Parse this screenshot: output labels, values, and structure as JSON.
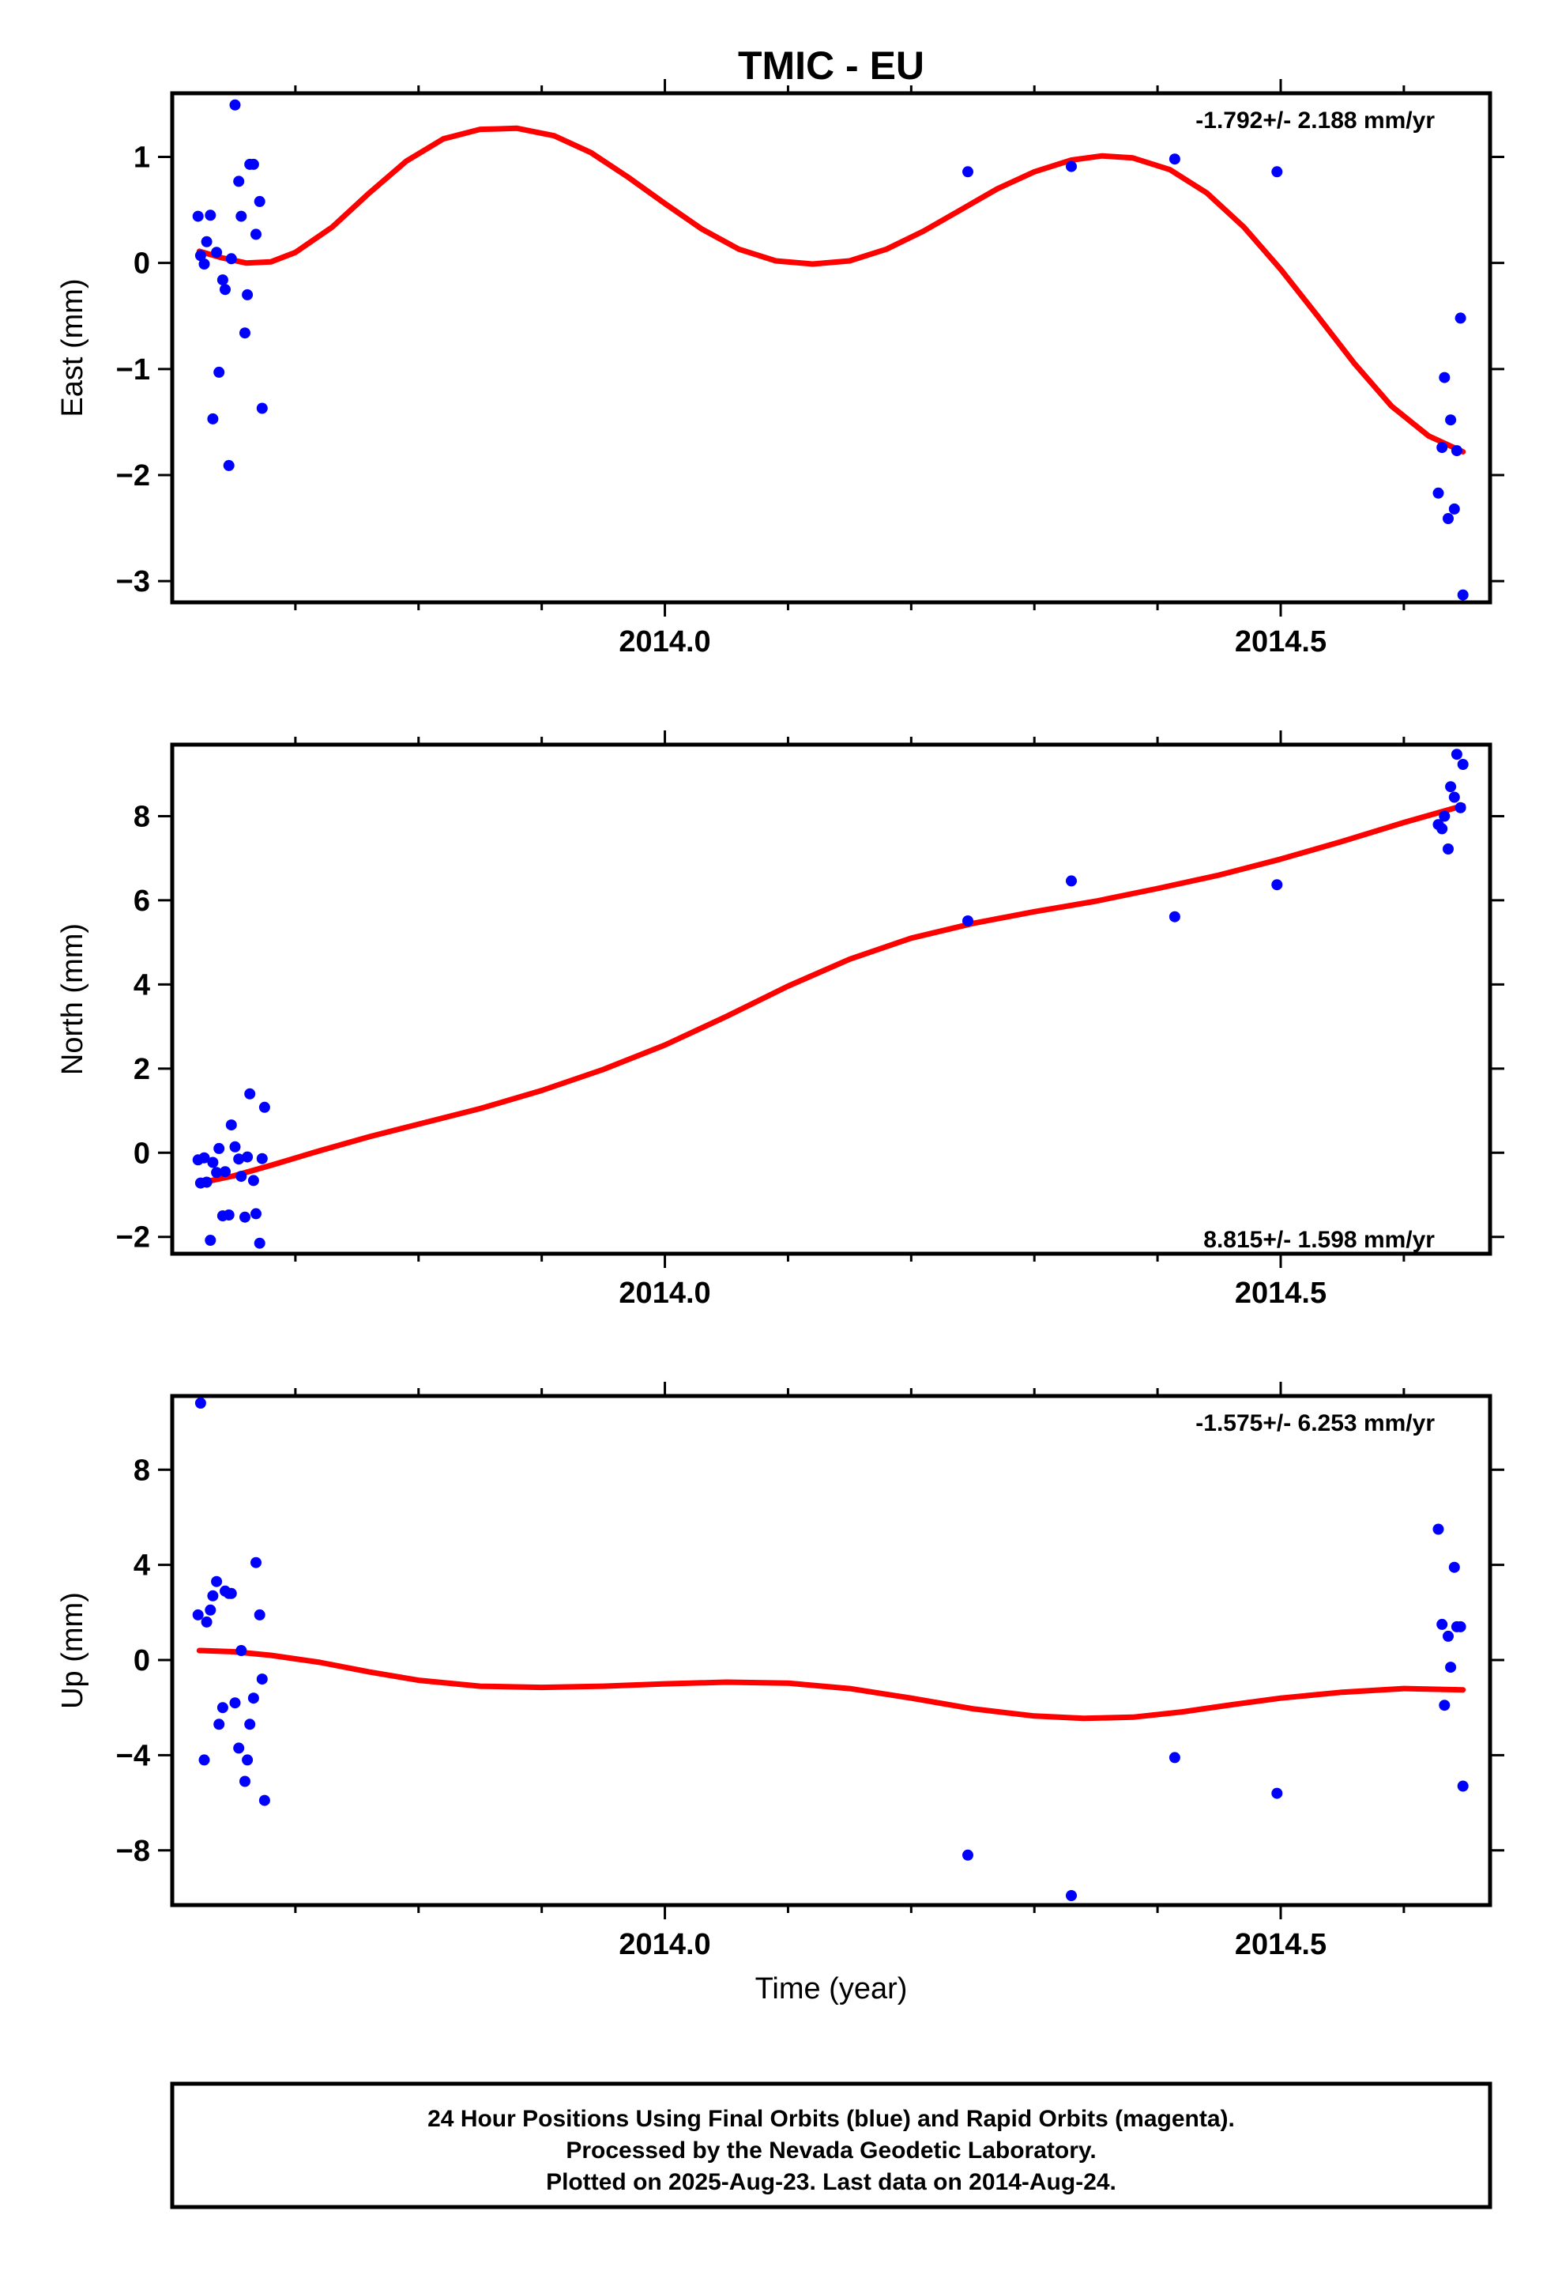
{
  "title": "TMIC - EU",
  "x_axis_label": "Time (year)",
  "colors": {
    "points": "#0000ff",
    "fit": "#ff0000",
    "frame": "#000000"
  },
  "footer": {
    "line1": "24 Hour Positions Using Final Orbits (blue) and Rapid Orbits (magenta).",
    "line2": "Processed by the Nevada Geodetic Laboratory.",
    "line3": "Plotted on 2025-Aug-23. Last data on 2014-Aug-24."
  },
  "chart_data": [
    {
      "type": "scatter",
      "ylabel": "East (mm)",
      "rate_text": "-1.792+/- 2.188 mm/yr",
      "xlim": [
        2013.6,
        2014.67
      ],
      "ylim": [
        -3.2,
        1.6
      ],
      "x_ticks": [
        2014.0,
        2014.5
      ],
      "x_tick_labels": [
        "2014.0",
        "2014.5"
      ],
      "y_ticks": [
        -3,
        -2,
        -1,
        0,
        1
      ],
      "y_tick_labels": [
        "−3",
        "−2",
        "−1",
        "0",
        "1"
      ],
      "grid": false,
      "points": [
        [
          2013.621,
          0.44
        ],
        [
          2013.623,
          0.07
        ],
        [
          2013.626,
          -0.01
        ],
        [
          2013.628,
          0.2
        ],
        [
          2013.631,
          0.45
        ],
        [
          2013.633,
          -1.47
        ],
        [
          2013.636,
          0.1
        ],
        [
          2013.638,
          -1.03
        ],
        [
          2013.641,
          -0.16
        ],
        [
          2013.643,
          -0.25
        ],
        [
          2013.646,
          -1.91
        ],
        [
          2013.648,
          0.04
        ],
        [
          2013.651,
          1.49
        ],
        [
          2013.654,
          0.77
        ],
        [
          2013.656,
          0.44
        ],
        [
          2013.659,
          -0.66
        ],
        [
          2013.661,
          -0.3
        ],
        [
          2013.663,
          0.93
        ],
        [
          2013.666,
          0.93
        ],
        [
          2013.668,
          0.27
        ],
        [
          2013.671,
          0.58
        ],
        [
          2013.673,
          -1.37
        ],
        [
          2014.246,
          0.86
        ],
        [
          2014.33,
          0.91
        ],
        [
          2014.414,
          0.98
        ],
        [
          2014.497,
          0.86
        ],
        [
          2014.628,
          -2.17
        ],
        [
          2014.631,
          -1.74
        ],
        [
          2014.633,
          -1.08
        ],
        [
          2014.636,
          -2.41
        ],
        [
          2014.638,
          -1.48
        ],
        [
          2014.641,
          -2.32
        ],
        [
          2014.643,
          -1.77
        ],
        [
          2014.646,
          -0.52
        ],
        [
          2014.648,
          -3.13
        ]
      ],
      "fit": [
        [
          2013.622,
          0.11
        ],
        [
          2013.64,
          0.05
        ],
        [
          2013.66,
          0.0
        ],
        [
          2013.68,
          0.01
        ],
        [
          2013.7,
          0.1
        ],
        [
          2013.73,
          0.34
        ],
        [
          2013.76,
          0.66
        ],
        [
          2013.79,
          0.96
        ],
        [
          2013.82,
          1.17
        ],
        [
          2013.85,
          1.26
        ],
        [
          2013.88,
          1.27
        ],
        [
          2013.91,
          1.2
        ],
        [
          2013.94,
          1.04
        ],
        [
          2013.97,
          0.81
        ],
        [
          2014.0,
          0.56
        ],
        [
          2014.03,
          0.32
        ],
        [
          2014.06,
          0.13
        ],
        [
          2014.09,
          0.02
        ],
        [
          2014.12,
          -0.01
        ],
        [
          2014.15,
          0.02
        ],
        [
          2014.18,
          0.13
        ],
        [
          2014.21,
          0.3
        ],
        [
          2014.24,
          0.5
        ],
        [
          2014.27,
          0.7
        ],
        [
          2014.3,
          0.86
        ],
        [
          2014.33,
          0.97
        ],
        [
          2014.355,
          1.01
        ],
        [
          2014.38,
          0.99
        ],
        [
          2014.41,
          0.88
        ],
        [
          2014.44,
          0.66
        ],
        [
          2014.47,
          0.34
        ],
        [
          2014.5,
          -0.06
        ],
        [
          2014.53,
          -0.5
        ],
        [
          2014.56,
          -0.95
        ],
        [
          2014.59,
          -1.35
        ],
        [
          2014.62,
          -1.63
        ],
        [
          2014.648,
          -1.78
        ]
      ]
    },
    {
      "type": "scatter",
      "ylabel": "North (mm)",
      "rate_text": "8.815+/- 1.598 mm/yr",
      "xlim": [
        2013.6,
        2014.67
      ],
      "ylim": [
        -2.4,
        9.7
      ],
      "x_ticks": [
        2014.0,
        2014.5
      ],
      "x_tick_labels": [
        "2014.0",
        "2014.5"
      ],
      "y_ticks": [
        -2,
        0,
        2,
        4,
        6,
        8
      ],
      "y_tick_labels": [
        "−2",
        "0",
        "2",
        "4",
        "6",
        "8"
      ],
      "grid": false,
      "points": [
        [
          2013.621,
          -0.17
        ],
        [
          2013.623,
          -0.72
        ],
        [
          2013.626,
          -0.12
        ],
        [
          2013.628,
          -0.7
        ],
        [
          2013.631,
          -2.08
        ],
        [
          2013.633,
          -0.23
        ],
        [
          2013.636,
          -0.47
        ],
        [
          2013.638,
          0.1
        ],
        [
          2013.641,
          -1.5
        ],
        [
          2013.643,
          -0.45
        ],
        [
          2013.646,
          -1.48
        ],
        [
          2013.648,
          0.66
        ],
        [
          2013.651,
          0.14
        ],
        [
          2013.654,
          -0.15
        ],
        [
          2013.656,
          -0.56
        ],
        [
          2013.659,
          -1.53
        ],
        [
          2013.661,
          -0.1
        ],
        [
          2013.663,
          1.4
        ],
        [
          2013.666,
          -0.66
        ],
        [
          2013.668,
          -1.45
        ],
        [
          2013.671,
          -2.15
        ],
        [
          2013.673,
          -0.14
        ],
        [
          2013.675,
          1.08
        ],
        [
          2014.246,
          5.51
        ],
        [
          2014.33,
          6.46
        ],
        [
          2014.414,
          5.61
        ],
        [
          2014.497,
          6.37
        ],
        [
          2014.628,
          7.8
        ],
        [
          2014.631,
          7.7
        ],
        [
          2014.633,
          8.0
        ],
        [
          2014.636,
          7.22
        ],
        [
          2014.638,
          8.7
        ],
        [
          2014.641,
          8.45
        ],
        [
          2014.643,
          9.47
        ],
        [
          2014.646,
          8.2
        ],
        [
          2014.648,
          9.23
        ]
      ],
      "fit": [
        [
          2013.622,
          -0.72
        ],
        [
          2013.65,
          -0.55
        ],
        [
          2013.68,
          -0.3
        ],
        [
          2013.72,
          0.05
        ],
        [
          2013.76,
          0.38
        ],
        [
          2013.8,
          0.68
        ],
        [
          2013.85,
          1.05
        ],
        [
          2013.9,
          1.48
        ],
        [
          2013.95,
          1.98
        ],
        [
          2014.0,
          2.56
        ],
        [
          2014.05,
          3.24
        ],
        [
          2014.1,
          3.96
        ],
        [
          2014.15,
          4.6
        ],
        [
          2014.2,
          5.1
        ],
        [
          2014.25,
          5.45
        ],
        [
          2014.3,
          5.73
        ],
        [
          2014.35,
          5.98
        ],
        [
          2014.4,
          6.28
        ],
        [
          2014.45,
          6.6
        ],
        [
          2014.5,
          6.98
        ],
        [
          2014.55,
          7.4
        ],
        [
          2014.6,
          7.85
        ],
        [
          2014.648,
          8.25
        ]
      ]
    },
    {
      "type": "scatter",
      "ylabel": "Up (mm)",
      "rate_text": "-1.575+/- 6.253 mm/yr",
      "xlim": [
        2013.6,
        2014.67
      ],
      "ylim": [
        -10.3,
        11.1
      ],
      "x_ticks": [
        2014.0,
        2014.5
      ],
      "x_tick_labels": [
        "2014.0",
        "2014.5"
      ],
      "y_ticks": [
        -8,
        -4,
        0,
        4,
        8
      ],
      "y_tick_labels": [
        "−8",
        "−4",
        "0",
        "4",
        "8"
      ],
      "grid": false,
      "points": [
        [
          2013.621,
          1.9
        ],
        [
          2013.623,
          10.8
        ],
        [
          2013.626,
          -4.2
        ],
        [
          2013.628,
          1.6
        ],
        [
          2013.631,
          2.1
        ],
        [
          2013.633,
          2.7
        ],
        [
          2013.636,
          3.3
        ],
        [
          2013.638,
          -2.7
        ],
        [
          2013.641,
          -2.0
        ],
        [
          2013.643,
          2.9
        ],
        [
          2013.646,
          2.8
        ],
        [
          2013.648,
          2.8
        ],
        [
          2013.651,
          -1.8
        ],
        [
          2013.654,
          -3.7
        ],
        [
          2013.656,
          0.4
        ],
        [
          2013.659,
          -5.1
        ],
        [
          2013.661,
          -4.2
        ],
        [
          2013.663,
          -2.7
        ],
        [
          2013.666,
          -1.6
        ],
        [
          2013.668,
          4.1
        ],
        [
          2013.671,
          1.9
        ],
        [
          2013.673,
          -0.8
        ],
        [
          2013.675,
          -5.9
        ],
        [
          2014.246,
          -8.2
        ],
        [
          2014.33,
          -9.9
        ],
        [
          2014.414,
          -4.1
        ],
        [
          2014.497,
          -5.6
        ],
        [
          2014.628,
          5.5
        ],
        [
          2014.631,
          1.5
        ],
        [
          2014.633,
          -1.9
        ],
        [
          2014.636,
          1.0
        ],
        [
          2014.638,
          -0.3
        ],
        [
          2014.641,
          3.9
        ],
        [
          2014.643,
          1.4
        ],
        [
          2014.646,
          1.4
        ],
        [
          2014.648,
          -5.3
        ]
      ],
      "fit": [
        [
          2013.622,
          0.4
        ],
        [
          2013.65,
          0.35
        ],
        [
          2013.68,
          0.2
        ],
        [
          2013.72,
          -0.1
        ],
        [
          2013.76,
          -0.5
        ],
        [
          2013.8,
          -0.85
        ],
        [
          2013.85,
          -1.1
        ],
        [
          2013.9,
          -1.15
        ],
        [
          2013.95,
          -1.1
        ],
        [
          2014.0,
          -1.0
        ],
        [
          2014.05,
          -0.93
        ],
        [
          2014.1,
          -0.97
        ],
        [
          2014.15,
          -1.2
        ],
        [
          2014.2,
          -1.6
        ],
        [
          2014.25,
          -2.05
        ],
        [
          2014.3,
          -2.35
        ],
        [
          2014.34,
          -2.45
        ],
        [
          2014.38,
          -2.4
        ],
        [
          2014.42,
          -2.18
        ],
        [
          2014.46,
          -1.88
        ],
        [
          2014.5,
          -1.6
        ],
        [
          2014.55,
          -1.35
        ],
        [
          2014.6,
          -1.2
        ],
        [
          2014.648,
          -1.25
        ]
      ]
    }
  ]
}
